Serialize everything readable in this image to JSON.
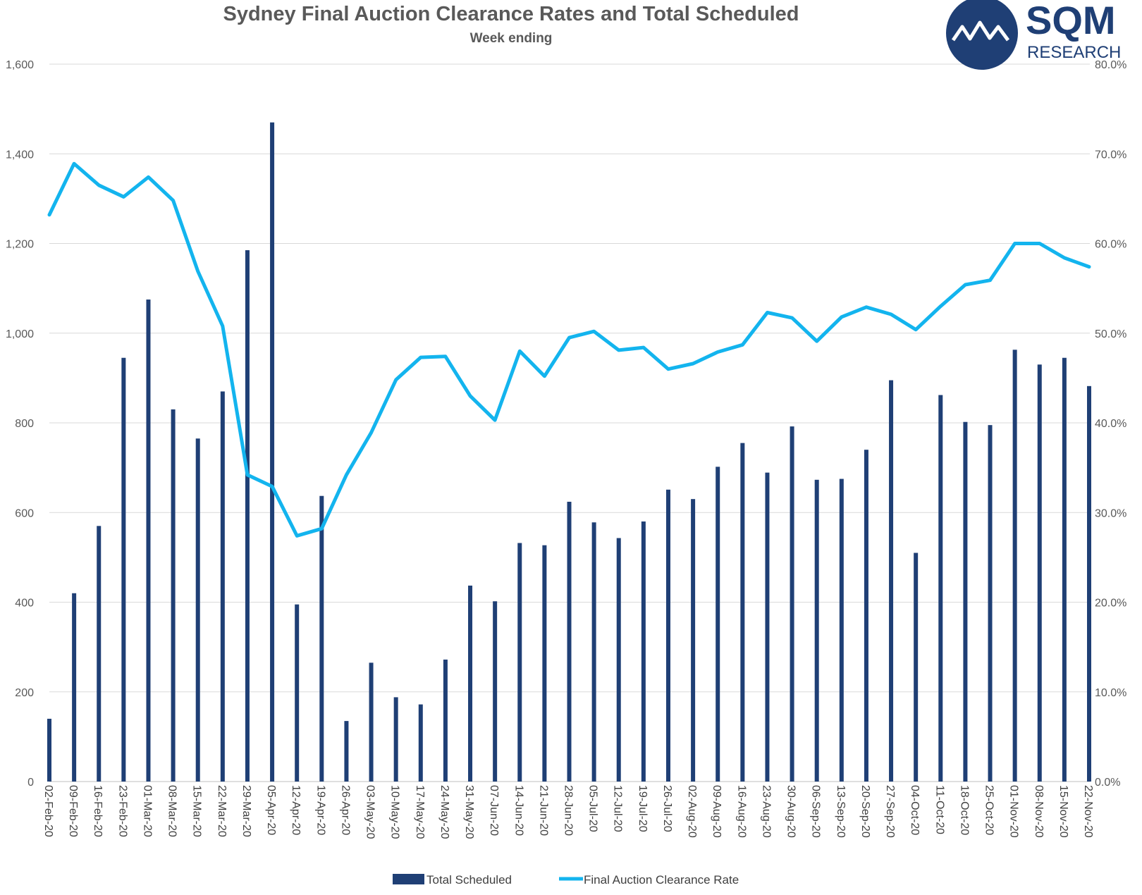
{
  "chart_data": {
    "type": "bar",
    "title": "Sydney Final Auction Clearance Rates and Total Scheduled",
    "subtitle": "Week ending",
    "categories": [
      "02-Feb-20",
      "09-Feb-20",
      "16-Feb-20",
      "23-Feb-20",
      "01-Mar-20",
      "08-Mar-20",
      "15-Mar-20",
      "22-Mar-20",
      "29-Mar-20",
      "05-Apr-20",
      "12-Apr-20",
      "19-Apr-20",
      "26-Apr-20",
      "03-May-20",
      "10-May-20",
      "17-May-20",
      "24-May-20",
      "31-May-20",
      "07-Jun-20",
      "14-Jun-20",
      "21-Jun-20",
      "28-Jun-20",
      "05-Jul-20",
      "12-Jul-20",
      "19-Jul-20",
      "26-Jul-20",
      "02-Aug-20",
      "09-Aug-20",
      "16-Aug-20",
      "23-Aug-20",
      "30-Aug-20",
      "06-Sep-20",
      "13-Sep-20",
      "20-Sep-20",
      "27-Sep-20",
      "04-Oct-20",
      "11-Oct-20",
      "18-Oct-20",
      "25-Oct-20",
      "01-Nov-20",
      "08-Nov-20",
      "15-Nov-20",
      "22-Nov-20"
    ],
    "series": [
      {
        "name": "Total Scheduled",
        "kind": "bar",
        "axis": "left",
        "color": "#1F3F75",
        "values": [
          140,
          420,
          570,
          945,
          1075,
          830,
          765,
          870,
          1185,
          1470,
          395,
          637,
          135,
          265,
          188,
          172,
          272,
          437,
          402,
          532,
          527,
          624,
          578,
          543,
          580,
          651,
          630,
          702,
          755,
          689,
          792,
          673,
          675,
          740,
          895,
          510,
          862,
          802,
          795,
          963,
          930,
          945,
          882
        ]
      },
      {
        "name": "Final Auction Clearance Rate",
        "kind": "line",
        "axis": "right",
        "color": "#13B4EE",
        "values": [
          63.2,
          68.9,
          66.5,
          65.2,
          67.4,
          64.8,
          56.9,
          50.8,
          34.2,
          32.9,
          27.4,
          28.2,
          34.2,
          38.9,
          44.8,
          47.3,
          47.4,
          43.0,
          40.3,
          48.0,
          45.2,
          49.5,
          50.2,
          48.1,
          48.4,
          46.0,
          46.6,
          47.9,
          48.7,
          52.3,
          51.7,
          49.1,
          51.8,
          52.9,
          52.1,
          50.4,
          53.0,
          55.4,
          55.9,
          60.0,
          60.0,
          58.4,
          57.4
        ]
      }
    ],
    "y_left": {
      "min": 0,
      "max": 1600,
      "ticks": [
        "0",
        "200",
        "400",
        "600",
        "800",
        "1,000",
        "1,200",
        "1,400",
        "1,600"
      ]
    },
    "y_right": {
      "min": 0,
      "max": 80,
      "ticks": [
        "0.0%",
        "10.0%",
        "20.0%",
        "30.0%",
        "40.0%",
        "50.0%",
        "60.0%",
        "70.0%",
        "80.0%"
      ]
    },
    "grid": true,
    "legend_position": "bottom-center"
  },
  "logo": {
    "brand": "SQM",
    "sub": "RESEARCH",
    "color": "#1F3F75"
  }
}
